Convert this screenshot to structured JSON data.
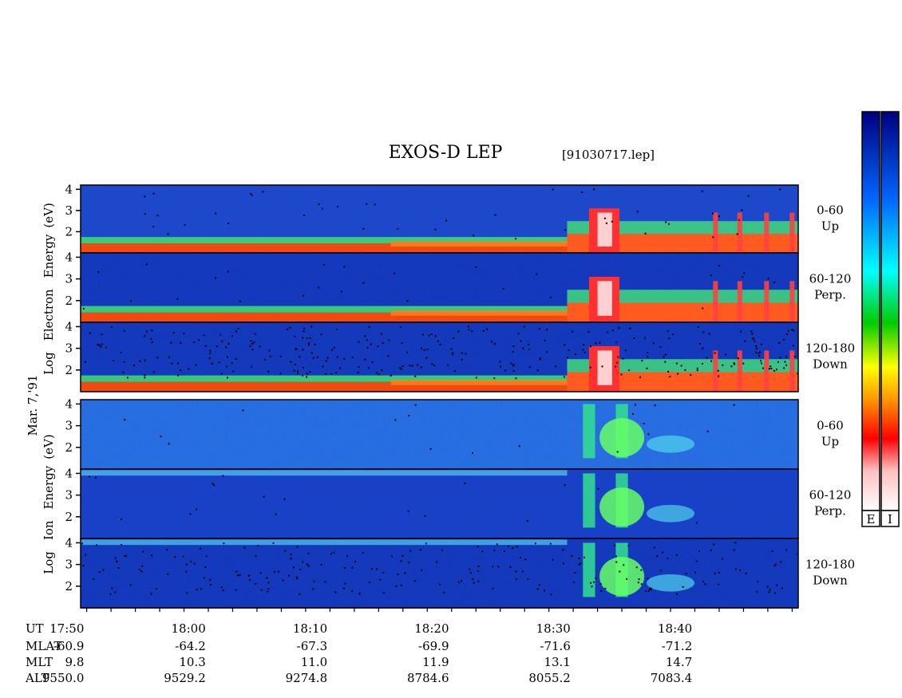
{
  "chart_data": {
    "type": "heatmap",
    "title": "EXOS-D LEP",
    "file_id": "[91030717.lep]",
    "date_label": "Mar. 7,'91",
    "electron_ylabel": [
      "Log",
      "Electron",
      "Energy",
      "(eV)"
    ],
    "ion_ylabel": [
      "Log",
      "Ion",
      "Energy",
      "(eV)"
    ],
    "ylim": [
      1,
      4.2
    ],
    "yticks": [
      2,
      3,
      4
    ],
    "colorscale": [
      "#ffffff",
      "#ff0000",
      "#ffa500",
      "#ffff00",
      "#00ff00",
      "#00ffff",
      "#3399ff",
      "#0000ff",
      "#00008b"
    ],
    "colorbars": [
      {
        "label": "E"
      },
      {
        "label": "I"
      }
    ],
    "panels": [
      {
        "species": "electron",
        "angle": "0-60",
        "direction": "Up",
        "background": "#1f47c8",
        "band": "#ff6a00",
        "noise": 0.05
      },
      {
        "species": "electron",
        "angle": "60-120",
        "direction": "Perp.",
        "background": "#1537b8",
        "band": "#66ff55",
        "noise": 0.03
      },
      {
        "species": "electron",
        "angle": "120-180",
        "direction": "Down",
        "background": "#1537b8",
        "band": "#66ff55",
        "noise": 0.35
      },
      {
        "species": "ion",
        "angle": "0-60",
        "direction": "Up",
        "background": "#2a6fe0",
        "band": "#55ddee",
        "noise": 0.02
      },
      {
        "species": "ion",
        "angle": "60-120",
        "direction": "Perp.",
        "background": "#1a40c4",
        "band": "#44bbee",
        "noise": 0.02
      },
      {
        "species": "ion",
        "angle": "120-180",
        "direction": "Down",
        "background": "#1537b8",
        "band": "#44bbee",
        "noise": 0.25
      }
    ],
    "xaxis": {
      "labels": [
        "UT",
        "MLAT",
        "MLT",
        "ALT"
      ],
      "ut": [
        "17:50",
        "18:00",
        "18:10",
        "18:20",
        "18:30",
        "18:40"
      ],
      "mlat": [
        "-60.9",
        "-64.2",
        "-67.3",
        "-69.9",
        "-71.6",
        "-71.2"
      ],
      "mlt": [
        "9.8",
        "10.3",
        "11.0",
        "11.9",
        "13.1",
        "14.7"
      ],
      "alt": [
        "9550.0",
        "9529.2",
        "9274.8",
        "8784.6",
        "8055.2",
        "7083.4"
      ],
      "start_min": 1070.5,
      "end_min": 1129.5,
      "minor_tick_min": 2
    }
  }
}
